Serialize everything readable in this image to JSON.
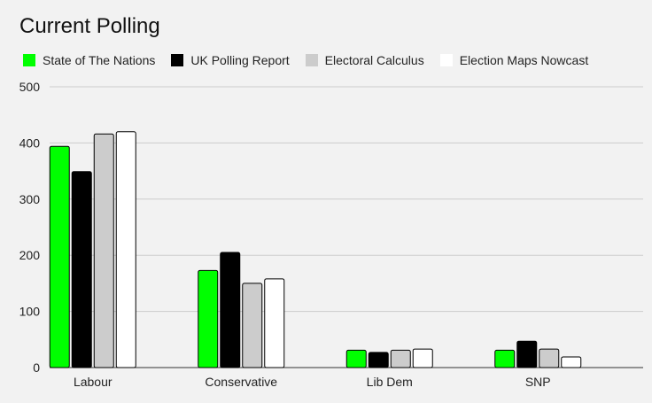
{
  "chart_data": {
    "type": "bar",
    "title": "Current Polling",
    "categories": [
      "Labour",
      "Conservative",
      "Lib Dem",
      "SNP"
    ],
    "series": [
      {
        "name": "State of The Nations",
        "color": "#00ff00",
        "values": [
          394,
          173,
          31,
          31
        ]
      },
      {
        "name": "UK Polling Report",
        "color": "#000000",
        "values": [
          349,
          205,
          27,
          47
        ]
      },
      {
        "name": "Electoral Calculus",
        "color": "#cccccc",
        "values": [
          416,
          150,
          31,
          33
        ]
      },
      {
        "name": "Election Maps Nowcast",
        "color": "#ffffff",
        "values": [
          420,
          158,
          33,
          19
        ]
      }
    ],
    "ylim": [
      0,
      500
    ],
    "yticks": [
      0,
      100,
      200,
      300,
      400,
      500
    ],
    "xlabel": "",
    "ylabel": "",
    "grid": true,
    "legend_position": "top-left",
    "bar_border_color": "#000000",
    "grid_color": "#cccccc",
    "background": "#f2f2f2"
  }
}
